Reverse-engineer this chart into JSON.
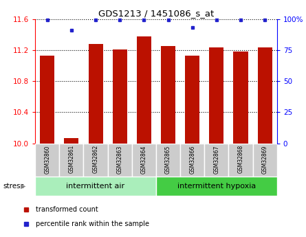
{
  "title": "GDS1213 / 1451086_s_at",
  "samples": [
    "GSM32860",
    "GSM32861",
    "GSM32862",
    "GSM32863",
    "GSM32864",
    "GSM32865",
    "GSM32866",
    "GSM32867",
    "GSM32868",
    "GSM32869"
  ],
  "transformed_count": [
    11.13,
    10.07,
    11.28,
    11.21,
    11.38,
    11.25,
    11.13,
    11.23,
    11.18,
    11.23
  ],
  "percentile_rank": [
    99,
    91,
    99,
    99,
    99,
    99,
    93,
    99,
    99,
    99
  ],
  "ylim_left": [
    10.0,
    11.6
  ],
  "ylim_right": [
    0,
    100
  ],
  "yticks_left": [
    10.0,
    10.4,
    10.8,
    11.2,
    11.6
  ],
  "yticks_right": [
    0,
    25,
    50,
    75,
    100
  ],
  "ytick_right_labels": [
    "0",
    "25",
    "50",
    "75",
    "100%"
  ],
  "bar_color": "#bb1100",
  "dot_color": "#2222cc",
  "group1_label": "intermittent air",
  "group2_label": "intermittent hypoxia",
  "group1_indices": [
    0,
    1,
    2,
    3,
    4
  ],
  "group2_indices": [
    5,
    6,
    7,
    8,
    9
  ],
  "group1_bg": "#aaeebb",
  "group2_bg": "#44cc44",
  "tick_label_bg": "#cccccc",
  "stress_label": "stress",
  "legend_bar_label": "transformed count",
  "legend_dot_label": "percentile rank within the sample",
  "bar_width": 0.6
}
